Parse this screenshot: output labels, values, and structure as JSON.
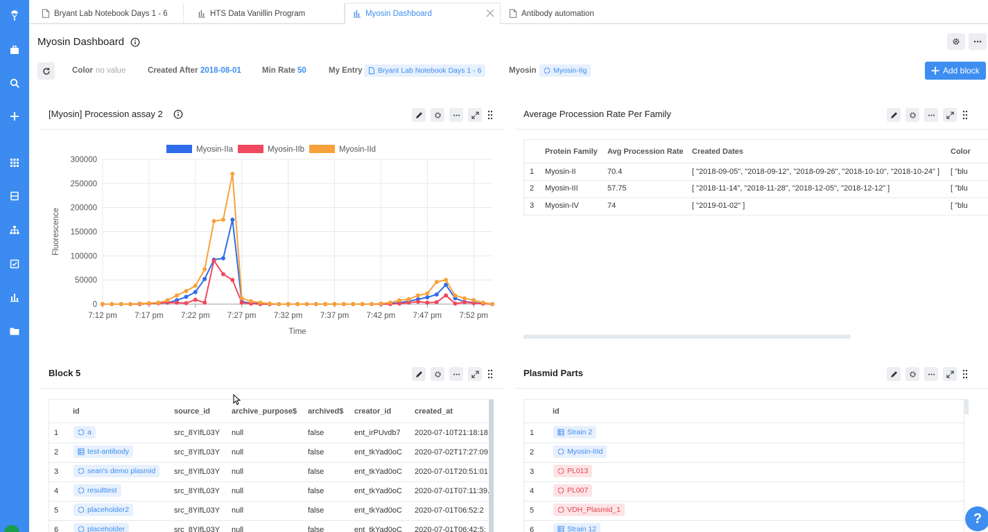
{
  "tabs": [
    {
      "label": "Bryant Lab Notebook Days 1 - 6",
      "icon": "document-icon"
    },
    {
      "label": "HTS Data Vanillin Program",
      "icon": "chart-icon"
    },
    {
      "label": "Myosin Dashboard",
      "icon": "chart-icon",
      "active": true
    },
    {
      "label": "Antibody automation",
      "icon": "document-icon"
    }
  ],
  "page": {
    "title": "Myosin Dashboard"
  },
  "filters": {
    "color_label": "Color",
    "color_value": "no value",
    "created_after_label": "Created After",
    "created_after_value": "2018-08-01",
    "min_rate_label": "Min Rate",
    "min_rate_value": "50",
    "my_entry_label": "My Entry",
    "my_entry_value": "Bryant Lab Notebook Days 1 - 6",
    "myosin_label": "Myosin",
    "myosin_value": "Myosin-IIg"
  },
  "add_block_label": "Add block",
  "chart_panel": {
    "title": "[Myosin] Procession assay 2"
  },
  "chart_data": {
    "type": "line",
    "xlabel": "Time",
    "ylabel": "Fluorescence",
    "ylim": [
      0,
      300000
    ],
    "yticks": [
      "0",
      "50000",
      "100000",
      "150000",
      "200000",
      "250000",
      "300000"
    ],
    "xticks": [
      "7:12 pm",
      "7:17 pm",
      "7:22 pm",
      "7:27 pm",
      "7:32 pm",
      "7:37 pm",
      "7:42 pm",
      "7:47 pm",
      "7:52 pm"
    ],
    "xrange_minutes": [
      0,
      42
    ],
    "legend_position": "top",
    "series": [
      {
        "name": "Myosin-IIa",
        "color": "#2f6bea",
        "x": [
          0,
          1,
          2,
          3,
          4,
          5,
          6,
          7,
          8,
          9,
          10,
          11,
          12,
          13,
          14,
          15,
          16,
          17,
          18,
          19,
          20,
          21,
          22,
          23,
          24,
          25,
          26,
          27,
          28,
          29,
          30,
          31,
          32,
          33,
          34,
          35,
          36,
          37,
          38,
          39,
          40,
          41,
          42
        ],
        "y": [
          0,
          0,
          0,
          0,
          1000,
          1000,
          2000,
          3000,
          8000,
          15000,
          25000,
          52000,
          92000,
          95000,
          175000,
          5000,
          2000,
          1000,
          0,
          0,
          0,
          0,
          0,
          0,
          0,
          0,
          0,
          0,
          0,
          0,
          0,
          1000,
          3000,
          6000,
          10000,
          14000,
          20000,
          40000,
          12000,
          5000,
          3000,
          1000,
          0
        ]
      },
      {
        "name": "Myosin-IIb",
        "color": "#f0485c",
        "x": [
          0,
          1,
          2,
          3,
          4,
          5,
          6,
          7,
          8,
          9,
          10,
          11,
          12,
          13,
          14,
          15,
          16,
          17,
          18,
          19,
          20,
          21,
          22,
          23,
          24,
          25,
          26,
          27,
          28,
          29,
          30,
          31,
          32,
          33,
          34,
          35,
          36,
          37,
          38,
          39,
          40,
          41,
          42
        ],
        "y": [
          0,
          0,
          0,
          0,
          0,
          1000,
          2000,
          3000,
          3000,
          2000,
          9000,
          3000,
          90000,
          62000,
          50000,
          3000,
          1000,
          0,
          0,
          0,
          0,
          0,
          0,
          0,
          0,
          0,
          0,
          0,
          0,
          0,
          0,
          0,
          1000,
          3000,
          5000,
          3000,
          4000,
          18000,
          1000,
          4000,
          2000,
          1000,
          0
        ]
      },
      {
        "name": "Myosin-IId",
        "color": "#f7a13a",
        "x": [
          0,
          1,
          2,
          3,
          4,
          5,
          6,
          7,
          8,
          9,
          10,
          11,
          12,
          13,
          14,
          15,
          16,
          17,
          18,
          19,
          20,
          21,
          22,
          23,
          24,
          25,
          26,
          27,
          28,
          29,
          30,
          31,
          32,
          33,
          34,
          35,
          36,
          37,
          38,
          39,
          40,
          41,
          42
        ],
        "y": [
          0,
          0,
          0,
          0,
          1000,
          2000,
          3000,
          8000,
          18000,
          27000,
          38000,
          72000,
          172000,
          175000,
          270000,
          12000,
          6000,
          3000,
          1000,
          0,
          0,
          0,
          0,
          0,
          0,
          0,
          0,
          0,
          0,
          0,
          1000,
          3000,
          8000,
          10000,
          18000,
          22000,
          46000,
          50000,
          18000,
          12000,
          8000,
          3000,
          0
        ]
      }
    ]
  },
  "avg_panel": {
    "title": "Average Procession Rate Per Family",
    "headers": [
      "Protein Family",
      "Avg Procession Rate",
      "Created Dates",
      "Color"
    ],
    "rows": [
      {
        "n": "1",
        "family": "Myosin-II",
        "rate": "70.4",
        "dates": "[ \"2018-09-05\", \"2018-09-12\", \"2018-09-26\", \"2018-10-10\", \"2018-10-24\" ]",
        "color": "[ \"blu"
      },
      {
        "n": "2",
        "family": "Myosin-III",
        "rate": "57.75",
        "dates": "[ \"2018-11-14\", \"2018-11-28\", \"2018-12-05\", \"2018-12-12\" ]",
        "color": "[ \"blu"
      },
      {
        "n": "3",
        "family": "Myosin-IV",
        "rate": "74",
        "dates": "[ \"2019-01-02\" ]",
        "color": "[ \"blu"
      }
    ]
  },
  "block5": {
    "title": "Block 5",
    "headers": [
      "id",
      "source_id",
      "archive_purpose$",
      "archived$",
      "creator_id",
      "created_at"
    ],
    "rows": [
      {
        "n": "1",
        "id": "a",
        "icon": "circle-icon",
        "source": "src_8YIfL03Y",
        "purpose": "null",
        "archived": "false",
        "creator": "ent_irPUvdb7",
        "created": "2020-07-10T21:18:18.:"
      },
      {
        "n": "2",
        "id": "test-antibody",
        "icon": "table-icon",
        "source": "src_8YIfL03Y",
        "purpose": "null",
        "archived": "false",
        "creator": "ent_tkYad0oC",
        "created": "2020-07-02T17:27:09"
      },
      {
        "n": "3",
        "id": "sean's demo plasmid",
        "icon": "circle-icon",
        "source": "src_8YIfL03Y",
        "purpose": "null",
        "archived": "false",
        "creator": "ent_tkYad0oC",
        "created": "2020-07-01T20:51:01"
      },
      {
        "n": "4",
        "id": "resulttest",
        "icon": "circle-icon",
        "source": "src_8YIfL03Y",
        "purpose": "null",
        "archived": "false",
        "creator": "ent_tkYad0oC",
        "created": "2020-07-01T07:11:39."
      },
      {
        "n": "5",
        "id": "placeholder2",
        "icon": "circle-icon",
        "source": "src_8YIfL03Y",
        "purpose": "null",
        "archived": "false",
        "creator": "ent_tkYad0oC",
        "created": "2020-07-01T06:52:2"
      },
      {
        "n": "6",
        "id": "placeholder",
        "icon": "circle-icon",
        "source": "src_8YIfL03Y",
        "purpose": "null",
        "archived": "false",
        "creator": "ent_tkYad0oC",
        "created": "2020-07-01T06:42:5:"
      }
    ]
  },
  "plasmid": {
    "title": "Plasmid Parts",
    "headers": [
      "id"
    ],
    "rows": [
      {
        "n": "1",
        "id": "Strain 2",
        "icon": "table-icon",
        "tone": "blue"
      },
      {
        "n": "2",
        "id": "Myosin-IIId",
        "icon": "circle-icon",
        "tone": "blue"
      },
      {
        "n": "3",
        "id": "PL013",
        "icon": "circle-icon",
        "tone": "red"
      },
      {
        "n": "4",
        "id": "PL007",
        "icon": "circle-icon",
        "tone": "red"
      },
      {
        "n": "5",
        "id": "VDH_Plasmid_1",
        "icon": "circle-icon",
        "tone": "red"
      },
      {
        "n": "6",
        "id": "Strain 12",
        "icon": "table-icon",
        "tone": "blue"
      }
    ]
  },
  "help_label": "?"
}
